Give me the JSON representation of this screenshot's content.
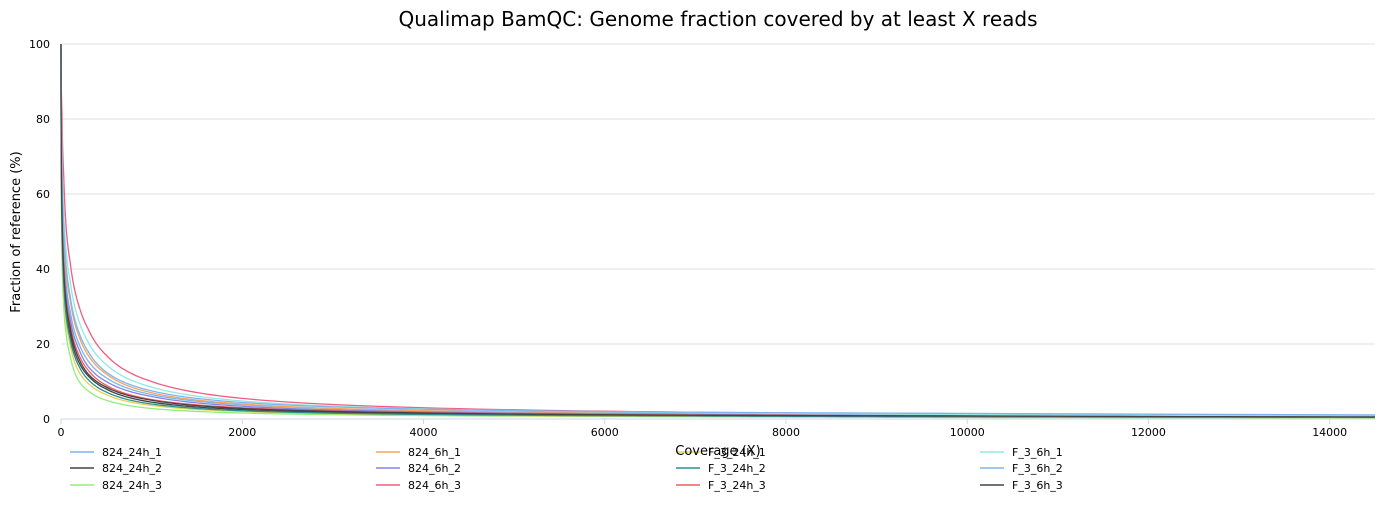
{
  "chart_data": {
    "type": "line",
    "title": "Qualimap BamQC: Genome fraction covered by at least X reads",
    "xlabel": "Coverage (X)",
    "ylabel": "Fraction of reference (%)",
    "xlim": [
      0,
      14500
    ],
    "ylim": [
      0,
      100
    ],
    "xticks": [
      "0",
      "2000",
      "4000",
      "6000",
      "8000",
      "10000",
      "12000",
      "14000"
    ],
    "yticks": [
      "0",
      "20",
      "40",
      "60",
      "80",
      "100"
    ],
    "grid": "horizontal",
    "legend_position": "bottom",
    "series": [
      {
        "name": "824_24h_1",
        "color": "#7cb5ec",
        "x": [
          0,
          10,
          30,
          60,
          100,
          200,
          300,
          500,
          1000,
          2000,
          4000,
          7000,
          10000,
          14500
        ],
        "values": [
          100,
          62,
          45,
          35,
          29,
          20,
          15.5,
          11,
          6.5,
          3.8,
          2.2,
          1.5,
          1.2,
          0.8
        ]
      },
      {
        "name": "824_24h_2",
        "color": "#434348",
        "x": [
          0,
          10,
          30,
          60,
          100,
          200,
          300,
          500,
          1000,
          2000,
          4000,
          7000,
          10000,
          14500
        ],
        "values": [
          100,
          55,
          38,
          28,
          23,
          15,
          11.5,
          8,
          4.5,
          2.5,
          1.4,
          0.9,
          0.7,
          0.5
        ]
      },
      {
        "name": "824_24h_3",
        "color": "#90ed7d",
        "x": [
          0,
          10,
          30,
          60,
          100,
          200,
          300,
          500,
          1000,
          2000,
          4000,
          7000,
          10000,
          14500
        ],
        "values": [
          100,
          45,
          30,
          22,
          17,
          10,
          7.5,
          5,
          2.8,
          1.6,
          0.9,
          0.6,
          0.4,
          0.3
        ]
      },
      {
        "name": "824_6h_1",
        "color": "#f7a35c",
        "x": [
          0,
          10,
          30,
          60,
          100,
          200,
          300,
          500,
          1000,
          2000,
          4000,
          7000,
          10000,
          14500
        ],
        "values": [
          100,
          65,
          48,
          38,
          32,
          22,
          17,
          12,
          7,
          4,
          2.2,
          1.3,
          1,
          0.7
        ]
      },
      {
        "name": "824_6h_2",
        "color": "#8085e9",
        "x": [
          0,
          10,
          30,
          60,
          100,
          200,
          300,
          500,
          1000,
          2000,
          4000,
          7000,
          10000,
          14500
        ],
        "values": [
          100,
          60,
          43,
          33,
          27,
          18.5,
          14,
          10,
          6,
          3.4,
          1.9,
          1.2,
          0.9,
          0.6
        ]
      },
      {
        "name": "824_6h_3",
        "color": "#f15c80",
        "x": [
          0,
          10,
          30,
          60,
          100,
          200,
          300,
          500,
          1000,
          2000,
          4000,
          7000,
          10000,
          14500
        ],
        "values": [
          100,
          82,
          65,
          50,
          42,
          30,
          24,
          17,
          10,
          5.5,
          3,
          1.8,
          1.3,
          0.9
        ]
      },
      {
        "name": "F_3_24h_1",
        "color": "#e4d354",
        "x": [
          0,
          10,
          30,
          60,
          100,
          200,
          300,
          500,
          1000,
          2000,
          4000,
          7000,
          10000,
          14500
        ],
        "values": [
          100,
          50,
          34,
          25,
          20,
          12.5,
          9.5,
          6.5,
          3.6,
          2,
          1.1,
          0.7,
          0.5,
          0.4
        ]
      },
      {
        "name": "F_3_24h_2",
        "color": "#2b908f",
        "x": [
          0,
          10,
          30,
          60,
          100,
          200,
          300,
          500,
          1000,
          2000,
          4000,
          7000,
          10000,
          14500
        ],
        "values": [
          100,
          52,
          36,
          27,
          21.5,
          14,
          10.5,
          7.2,
          4,
          2.2,
          1.2,
          0.8,
          0.6,
          0.45
        ]
      },
      {
        "name": "F_3_24h_3",
        "color": "#f45b5b",
        "x": [
          0,
          10,
          30,
          60,
          100,
          200,
          300,
          500,
          1000,
          2000,
          4000,
          7000,
          10000,
          14500
        ],
        "values": [
          100,
          58,
          41,
          31,
          25.5,
          17,
          13,
          9,
          5.2,
          3,
          1.7,
          1.1,
          0.8,
          0.6
        ]
      },
      {
        "name": "F_3_6h_1",
        "color": "#91e8e1",
        "x": [
          0,
          10,
          30,
          60,
          100,
          200,
          300,
          500,
          1000,
          2000,
          4000,
          7000,
          10000,
          14500
        ],
        "values": [
          100,
          72,
          55,
          44,
          37,
          26,
          20.5,
          14.5,
          8.5,
          4.8,
          2.7,
          1.7,
          1.2,
          0.85
        ]
      },
      {
        "name": "F_3_6h_2",
        "color": "#7cb5ec",
        "x": [
          0,
          10,
          30,
          60,
          100,
          200,
          300,
          500,
          1000,
          2000,
          4000,
          7000,
          10000,
          14500
        ],
        "values": [
          100,
          68,
          51,
          40,
          33,
          23,
          18,
          12.5,
          7.5,
          4.4,
          2.6,
          1.8,
          1.5,
          1.1
        ]
      },
      {
        "name": "F_3_6h_3",
        "color": "#434348",
        "x": [
          0,
          10,
          30,
          60,
          100,
          200,
          300,
          500,
          1000,
          2000,
          4000,
          7000,
          10000,
          14500
        ],
        "values": [
          100,
          57,
          40,
          30,
          24.5,
          16,
          12,
          8.5,
          5,
          2.8,
          1.6,
          1,
          0.8,
          0.55
        ]
      }
    ]
  }
}
